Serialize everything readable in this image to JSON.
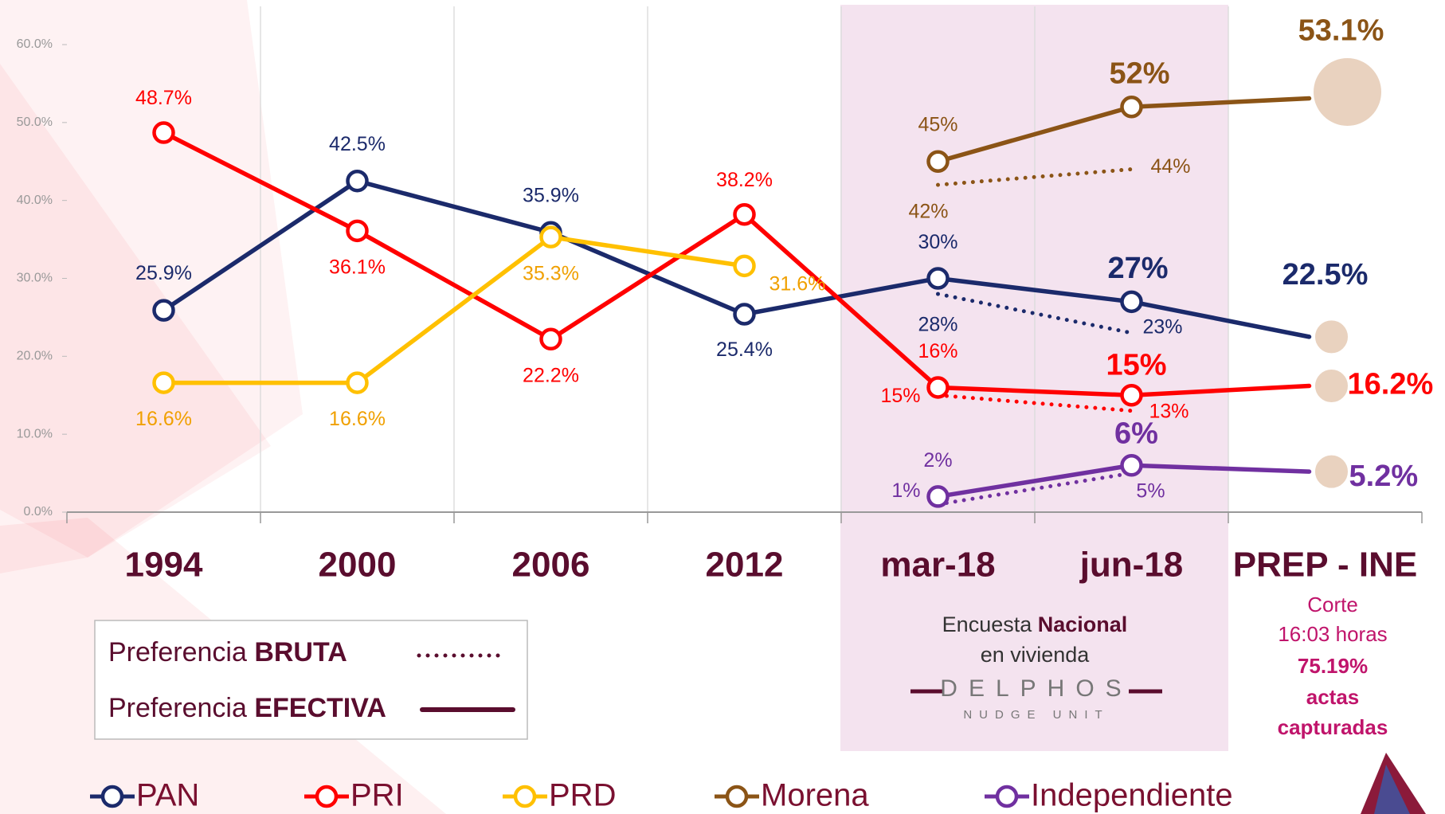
{
  "chart_data": {
    "type": "line",
    "categories": [
      "1994",
      "2000",
      "2006",
      "2012",
      "mar-18",
      "jun-18",
      "PREP - INE"
    ],
    "ylim": [
      0,
      60
    ],
    "yticks": [
      {
        "value": 0,
        "label": "0.0%"
      },
      {
        "value": 10,
        "label": "10.0%"
      },
      {
        "value": 20,
        "label": "20.0%"
      },
      {
        "value": 30,
        "label": "30.0%"
      },
      {
        "value": 40,
        "label": "40.0%"
      },
      {
        "value": 50,
        "label": "50.0%"
      },
      {
        "value": 60,
        "label": "60.0%"
      }
    ],
    "grid": true,
    "series": [
      {
        "name": "PAN",
        "color": "#1b2a6b",
        "values": [
          25.9,
          42.5,
          35.9,
          25.4,
          30,
          27,
          22.5
        ],
        "value_labels": [
          "25.9%",
          "42.5%",
          "35.9%",
          "25.4%",
          "30%",
          "27%",
          "22.5%"
        ],
        "brute_values": [
          null,
          null,
          null,
          null,
          28,
          23,
          null
        ],
        "brute_value_labels": [
          null,
          null,
          null,
          null,
          "28%",
          "23%",
          null
        ]
      },
      {
        "name": "PRI",
        "color": "#ff0000",
        "values": [
          48.7,
          36.1,
          22.2,
          38.2,
          16,
          15,
          16.2
        ],
        "value_labels": [
          "48.7%",
          "36.1%",
          "22.2%",
          "38.2%",
          "16%",
          "15%",
          "16.2%"
        ],
        "brute_values": [
          null,
          null,
          null,
          null,
          15,
          13,
          null
        ],
        "brute_value_labels": [
          null,
          null,
          null,
          null,
          "15%",
          "13%",
          null
        ]
      },
      {
        "name": "PRD",
        "color": "#ffc000",
        "values": [
          16.6,
          16.6,
          35.3,
          31.6,
          null,
          null,
          null
        ],
        "value_labels": [
          "16.6%",
          "16.6%",
          "35.3%",
          "31.6%",
          null,
          null,
          null
        ]
      },
      {
        "name": "Morena",
        "color": "#8b5416",
        "values": [
          null,
          null,
          null,
          null,
          45,
          52,
          53.1
        ],
        "value_labels": [
          null,
          null,
          null,
          null,
          "45%",
          "52%",
          "53.1%"
        ],
        "brute_values": [
          null,
          null,
          null,
          null,
          42,
          44,
          null
        ],
        "brute_value_labels": [
          null,
          null,
          null,
          null,
          "42%",
          "44%",
          null
        ]
      },
      {
        "name": "Independiente",
        "color": "#7030a0",
        "values": [
          null,
          null,
          null,
          null,
          2,
          6,
          5.2
        ],
        "value_labels": [
          null,
          null,
          null,
          null,
          "2%",
          "6%",
          "5.2%"
        ],
        "brute_values": [
          null,
          null,
          null,
          null,
          1,
          5,
          null
        ],
        "brute_value_labels": [
          null,
          null,
          null,
          null,
          "1%",
          "5%",
          null
        ]
      }
    ],
    "line_styles": [
      {
        "text": "Preferencia",
        "emphasis": "BRUTA",
        "dash": "dotted"
      },
      {
        "text": "Preferencia",
        "emphasis": "EFECTIVA",
        "dash": "solid"
      }
    ],
    "survey_note": {
      "text": "Encuesta",
      "emphasis": "Nacional",
      "line2": "en vivienda",
      "brand": "DELPHOS",
      "brand_sub": "NUDGE UNIT"
    },
    "prep_note": [
      "Corte",
      "16:03 horas",
      "75.19%",
      "actas",
      "capturadas"
    ]
  }
}
